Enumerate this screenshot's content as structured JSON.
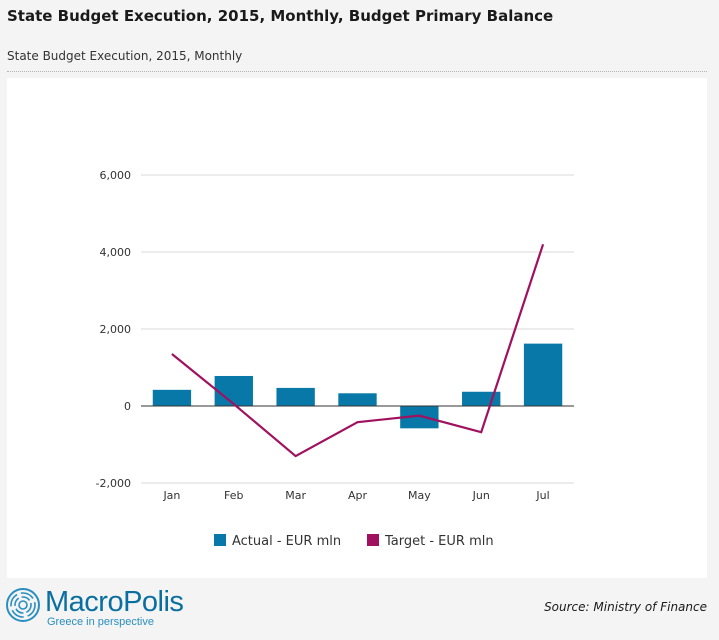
{
  "header": {
    "title": "State Budget Execution, 2015, Monthly, Budget Primary Balance",
    "subtitle": "State Budget Execution, 2015, Monthly"
  },
  "chart_data": {
    "type": "bar",
    "title": "",
    "xlabel": "",
    "ylabel": "",
    "categories": [
      "Jan",
      "Feb",
      "Mar",
      "Apr",
      "May",
      "Jun",
      "Jul"
    ],
    "ylim": [
      -2000,
      6000
    ],
    "yticks": [
      -2000,
      0,
      2000,
      4000,
      6000
    ],
    "ytick_labels": [
      "-2,000",
      "0",
      "2,000",
      "4,000",
      "6,000"
    ],
    "grid": true,
    "legend_position": "bottom-center",
    "series": [
      {
        "name": "Actual - EUR mln",
        "type": "bar",
        "color": "#0878a8",
        "values": [
          420,
          780,
          470,
          330,
          -580,
          370,
          1620
        ]
      },
      {
        "name": "Target - EUR mln",
        "type": "line",
        "color": "#a0115e",
        "values": [
          1350,
          50,
          -1300,
          -420,
          -250,
          -680,
          4200
        ]
      }
    ]
  },
  "footer": {
    "brand_part1": "Macro",
    "brand_part2": "Polis",
    "tagline": "Greece in perspective",
    "source": "Source: Ministry of Finance"
  }
}
